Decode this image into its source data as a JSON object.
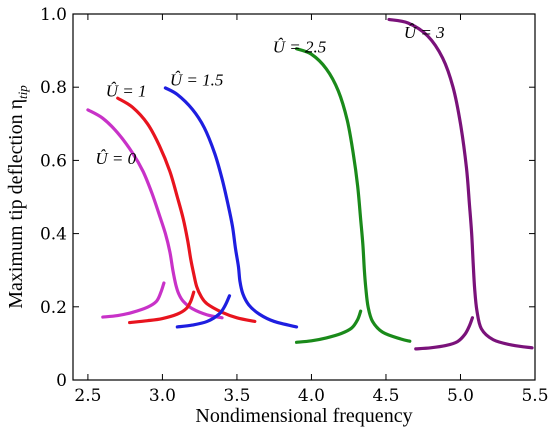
{
  "chart_data": {
    "type": "line",
    "title": "",
    "xlabel": "Nondimensional frequency",
    "ylabel": "Maximum tip deflection η",
    "ylabel_subscript": "tip",
    "xlim": [
      2.4,
      5.5
    ],
    "ylim": [
      0,
      1.0
    ],
    "xticks": [
      "2.5",
      "3.0",
      "3.5",
      "4.0",
      "4.5",
      "5.0",
      "5.5"
    ],
    "xtick_values": [
      2.5,
      3.0,
      3.5,
      4.0,
      4.5,
      5.0,
      5.5
    ],
    "yticks": [
      "0",
      "0.2",
      "0.4",
      "0.6",
      "0.8",
      "1.0"
    ],
    "ytick_values": [
      0,
      0.2,
      0.4,
      0.6,
      0.8,
      1.0
    ],
    "grid": false,
    "legend": "none",
    "series": [
      {
        "label": "Û = 0",
        "color": "#c832c8",
        "label_pos": [
          2.55,
          0.59
        ],
        "upper": [
          [
            2.5,
            0.738
          ],
          [
            2.6,
            0.715
          ],
          [
            2.7,
            0.675
          ],
          [
            2.8,
            0.62
          ],
          [
            2.87,
            0.57
          ],
          [
            2.93,
            0.51
          ],
          [
            2.98,
            0.45
          ],
          [
            3.02,
            0.4
          ],
          [
            3.05,
            0.35
          ],
          [
            3.07,
            0.3
          ],
          [
            3.09,
            0.26
          ],
          [
            3.11,
            0.235
          ],
          [
            3.14,
            0.215
          ],
          [
            3.2,
            0.195
          ],
          [
            3.3,
            0.178
          ],
          [
            3.4,
            0.17
          ]
        ],
        "lower": [
          [
            2.6,
            0.172
          ],
          [
            2.7,
            0.176
          ],
          [
            2.8,
            0.185
          ],
          [
            2.9,
            0.199
          ],
          [
            2.96,
            0.215
          ],
          [
            2.99,
            0.24
          ],
          [
            3.01,
            0.265
          ]
        ]
      },
      {
        "label": "Û = 1",
        "color": "#e8141e",
        "label_pos": [
          2.62,
          0.775
        ],
        "upper": [
          [
            2.7,
            0.77
          ],
          [
            2.8,
            0.745
          ],
          [
            2.9,
            0.7
          ],
          [
            2.98,
            0.64
          ],
          [
            3.05,
            0.57
          ],
          [
            3.1,
            0.5
          ],
          [
            3.14,
            0.44
          ],
          [
            3.17,
            0.38
          ],
          [
            3.19,
            0.33
          ],
          [
            3.21,
            0.29
          ],
          [
            3.23,
            0.255
          ],
          [
            3.26,
            0.228
          ],
          [
            3.3,
            0.208
          ],
          [
            3.4,
            0.185
          ],
          [
            3.5,
            0.17
          ],
          [
            3.62,
            0.16
          ]
        ],
        "lower": [
          [
            2.78,
            0.157
          ],
          [
            2.9,
            0.162
          ],
          [
            3.0,
            0.168
          ],
          [
            3.1,
            0.18
          ],
          [
            3.16,
            0.195
          ],
          [
            3.19,
            0.215
          ],
          [
            3.21,
            0.24
          ]
        ]
      },
      {
        "label": "Û = 1.5",
        "color": "#1e1ee0",
        "label_pos": [
          3.05,
          0.805
        ],
        "upper": [
          [
            3.02,
            0.798
          ],
          [
            3.1,
            0.78
          ],
          [
            3.2,
            0.74
          ],
          [
            3.28,
            0.69
          ],
          [
            3.35,
            0.62
          ],
          [
            3.4,
            0.55
          ],
          [
            3.44,
            0.48
          ],
          [
            3.47,
            0.42
          ],
          [
            3.49,
            0.36
          ],
          [
            3.51,
            0.31
          ],
          [
            3.52,
            0.27
          ],
          [
            3.54,
            0.235
          ],
          [
            3.58,
            0.205
          ],
          [
            3.65,
            0.18
          ],
          [
            3.75,
            0.16
          ],
          [
            3.9,
            0.145
          ]
        ],
        "lower": [
          [
            3.1,
            0.145
          ],
          [
            3.2,
            0.15
          ],
          [
            3.3,
            0.16
          ],
          [
            3.38,
            0.18
          ],
          [
            3.42,
            0.203
          ],
          [
            3.45,
            0.23
          ]
        ]
      },
      {
        "label": "Û = 2.5",
        "color": "#1a8a1a",
        "label_pos": [
          3.74,
          0.895
        ],
        "upper": [
          [
            3.9,
            0.905
          ],
          [
            4.0,
            0.89
          ],
          [
            4.1,
            0.85
          ],
          [
            4.18,
            0.79
          ],
          [
            4.24,
            0.71
          ],
          [
            4.28,
            0.62
          ],
          [
            4.31,
            0.53
          ],
          [
            4.33,
            0.44
          ],
          [
            4.345,
            0.37
          ],
          [
            4.355,
            0.3
          ],
          [
            4.365,
            0.25
          ],
          [
            4.38,
            0.2
          ],
          [
            4.41,
            0.16
          ],
          [
            4.48,
            0.13
          ],
          [
            4.6,
            0.112
          ],
          [
            4.66,
            0.106
          ]
        ],
        "lower": [
          [
            3.9,
            0.103
          ],
          [
            4.0,
            0.107
          ],
          [
            4.1,
            0.115
          ],
          [
            4.2,
            0.127
          ],
          [
            4.27,
            0.142
          ],
          [
            4.31,
            0.165
          ],
          [
            4.33,
            0.188
          ]
        ]
      },
      {
        "label": "Û = 3",
        "color": "#7a127a",
        "label_pos": [
          4.62,
          0.935
        ],
        "upper": [
          [
            4.52,
            0.985
          ],
          [
            4.65,
            0.975
          ],
          [
            4.78,
            0.94
          ],
          [
            4.88,
            0.88
          ],
          [
            4.95,
            0.8
          ],
          [
            5.0,
            0.7
          ],
          [
            5.04,
            0.58
          ],
          [
            5.06,
            0.48
          ],
          [
            5.075,
            0.4
          ],
          [
            5.085,
            0.32
          ],
          [
            5.095,
            0.25
          ],
          [
            5.11,
            0.19
          ],
          [
            5.14,
            0.14
          ],
          [
            5.22,
            0.11
          ],
          [
            5.35,
            0.095
          ],
          [
            5.48,
            0.088
          ]
        ],
        "lower": [
          [
            4.7,
            0.085
          ],
          [
            4.8,
            0.088
          ],
          [
            4.9,
            0.094
          ],
          [
            4.98,
            0.105
          ],
          [
            5.03,
            0.125
          ],
          [
            5.06,
            0.148
          ],
          [
            5.08,
            0.17
          ]
        ]
      }
    ]
  }
}
